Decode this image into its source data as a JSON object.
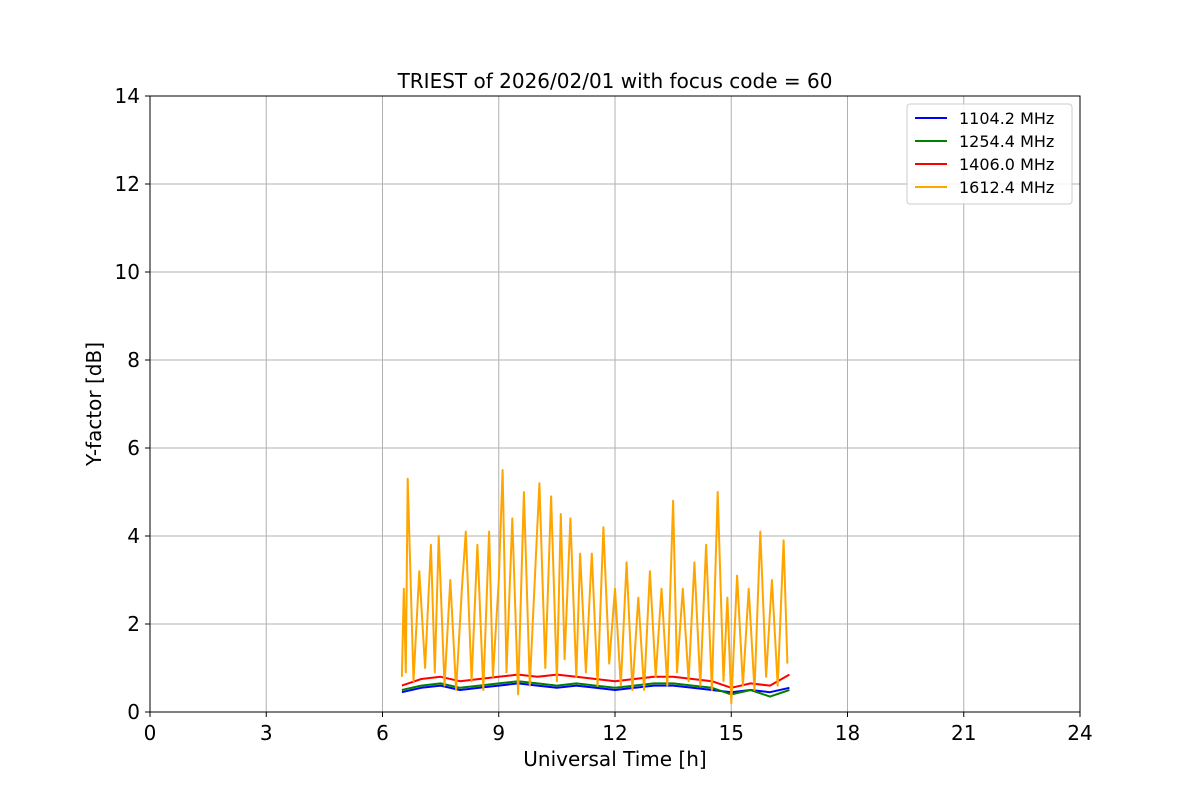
{
  "chart_data": {
    "type": "line",
    "title": "TRIEST of 2026/02/01 with focus code = 60",
    "xlabel": "Universal Time [h]",
    "ylabel": "Y-factor [dB]",
    "xlim": [
      0,
      24
    ],
    "ylim": [
      0,
      14
    ],
    "xticks": [
      0,
      3,
      6,
      9,
      12,
      15,
      18,
      21,
      24
    ],
    "yticks": [
      0,
      2,
      4,
      6,
      8,
      10,
      12,
      14
    ],
    "grid": true,
    "legend_position": "top-right",
    "series": [
      {
        "name": "1104.2 MHz",
        "color": "#0000ff",
        "x": [
          6.5,
          7.0,
          7.5,
          8.0,
          8.5,
          9.0,
          9.5,
          10.0,
          10.5,
          11.0,
          11.5,
          12.0,
          12.5,
          13.0,
          13.5,
          14.0,
          14.5,
          15.0,
          15.5,
          16.0,
          16.5
        ],
        "y": [
          0.45,
          0.55,
          0.6,
          0.5,
          0.55,
          0.6,
          0.65,
          0.6,
          0.55,
          0.6,
          0.55,
          0.5,
          0.55,
          0.6,
          0.6,
          0.55,
          0.5,
          0.45,
          0.5,
          0.45,
          0.55
        ]
      },
      {
        "name": "1254.4 MHz",
        "color": "#008000",
        "x": [
          6.5,
          7.0,
          7.5,
          8.0,
          8.5,
          9.0,
          9.5,
          10.0,
          10.5,
          11.0,
          11.5,
          12.0,
          12.5,
          13.0,
          13.5,
          14.0,
          14.5,
          15.0,
          15.5,
          16.0,
          16.5
        ],
        "y": [
          0.5,
          0.6,
          0.65,
          0.55,
          0.6,
          0.65,
          0.7,
          0.65,
          0.6,
          0.65,
          0.6,
          0.55,
          0.6,
          0.65,
          0.65,
          0.6,
          0.55,
          0.4,
          0.5,
          0.35,
          0.5
        ]
      },
      {
        "name": "1406.0 MHz",
        "color": "#ff0000",
        "x": [
          6.5,
          7.0,
          7.5,
          8.0,
          8.5,
          9.0,
          9.5,
          10.0,
          10.5,
          11.0,
          11.5,
          12.0,
          12.5,
          13.0,
          13.5,
          14.0,
          14.5,
          15.0,
          15.5,
          16.0,
          16.5
        ],
        "y": [
          0.6,
          0.75,
          0.8,
          0.7,
          0.75,
          0.8,
          0.85,
          0.8,
          0.85,
          0.8,
          0.75,
          0.7,
          0.75,
          0.8,
          0.8,
          0.75,
          0.7,
          0.55,
          0.65,
          0.6,
          0.85
        ]
      },
      {
        "name": "1612.4 MHz",
        "color": "#ffa500",
        "x": [
          6.5,
          6.55,
          6.6,
          6.65,
          6.8,
          6.95,
          7.1,
          7.25,
          7.35,
          7.45,
          7.6,
          7.75,
          7.9,
          8.05,
          8.15,
          8.3,
          8.45,
          8.6,
          8.75,
          8.85,
          9.0,
          9.1,
          9.2,
          9.35,
          9.5,
          9.65,
          9.8,
          9.95,
          10.05,
          10.2,
          10.35,
          10.5,
          10.6,
          10.7,
          10.85,
          11.0,
          11.1,
          11.25,
          11.4,
          11.55,
          11.7,
          11.85,
          12.0,
          12.15,
          12.3,
          12.45,
          12.6,
          12.75,
          12.9,
          13.05,
          13.2,
          13.35,
          13.5,
          13.6,
          13.75,
          13.9,
          14.05,
          14.2,
          14.35,
          14.5,
          14.65,
          14.8,
          14.9,
          15.0,
          15.15,
          15.3,
          15.45,
          15.6,
          15.75,
          15.9,
          16.05,
          16.2,
          16.35,
          16.45
        ],
        "y": [
          0.8,
          2.8,
          0.9,
          5.3,
          0.7,
          3.2,
          1.0,
          3.8,
          0.9,
          4.0,
          0.6,
          3.0,
          0.5,
          2.8,
          4.1,
          0.7,
          3.8,
          0.5,
          4.1,
          0.8,
          3.0,
          5.5,
          0.9,
          4.4,
          0.4,
          5.0,
          0.6,
          3.4,
          5.2,
          1.0,
          4.9,
          0.7,
          4.5,
          1.2,
          4.4,
          0.8,
          3.6,
          0.9,
          3.6,
          0.6,
          4.2,
          1.1,
          2.8,
          0.6,
          3.4,
          0.5,
          2.6,
          0.5,
          3.2,
          0.8,
          2.8,
          0.6,
          4.8,
          0.9,
          2.8,
          0.7,
          3.4,
          0.6,
          3.8,
          0.5,
          5.0,
          0.7,
          2.6,
          0.2,
          3.1,
          0.6,
          2.8,
          0.5,
          4.1,
          0.8,
          3.0,
          0.6,
          3.9,
          1.1
        ]
      }
    ]
  }
}
